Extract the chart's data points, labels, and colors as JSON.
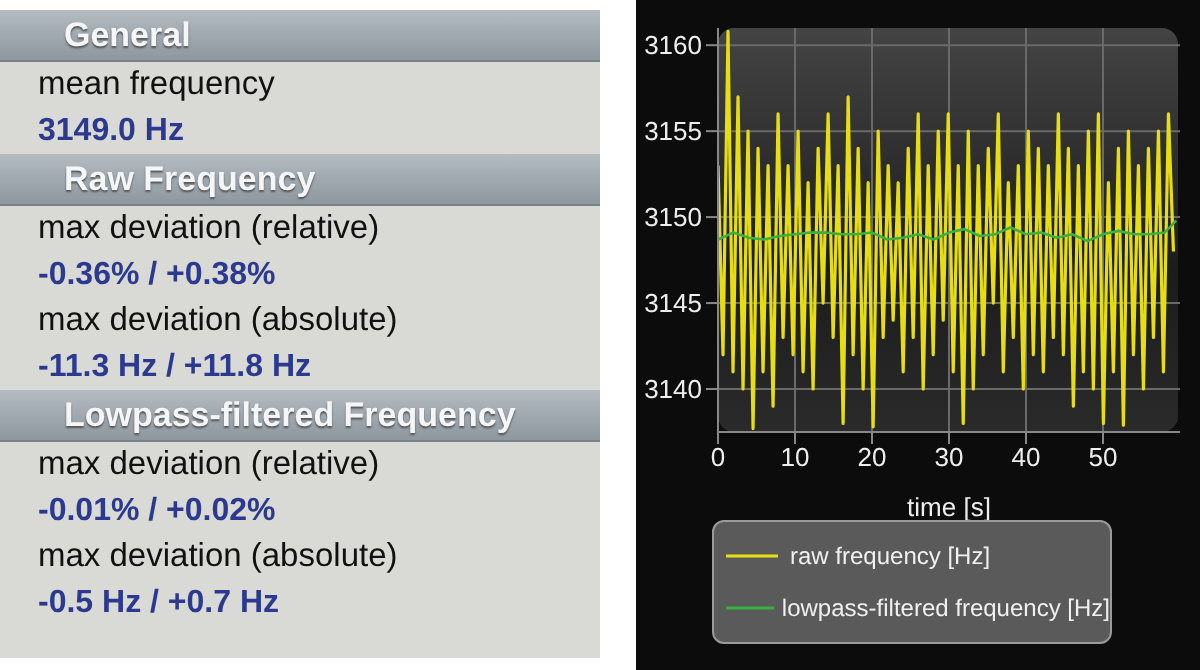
{
  "chart_data": [
    {
      "type": "other",
      "title": "General",
      "annotations": [
        "mean frequency",
        "3149.0 Hz"
      ]
    },
    {
      "type": "other",
      "title": "Raw Frequency",
      "annotations": [
        "max deviation (relative)",
        "-0.36% / +0.38%",
        "max deviation (absolute)",
        "-11.3 Hz / +11.8 Hz"
      ]
    },
    {
      "type": "other",
      "title": "Lowpass-filtered Frequency",
      "annotations": [
        "max deviation (relative)",
        "-0.01% / +0.02%",
        "max deviation (absolute)",
        "-0.5 Hz / +0.7 Hz"
      ]
    },
    {
      "type": "line",
      "xlabel": "time [s]",
      "xlim": [
        0,
        60
      ],
      "xticks": [
        0,
        10,
        20,
        30,
        40,
        50
      ],
      "ylim": [
        3137.5,
        3161
      ],
      "yticks": [
        3140,
        3145,
        3150,
        3155,
        3160
      ],
      "grid": true,
      "legend": "bottom",
      "marker": "none",
      "x": [
        0,
        0.65,
        1.3,
        1.95,
        2.6,
        3.25,
        3.9,
        4.55,
        5.2,
        5.85,
        6.5,
        7.15,
        7.8,
        8.45,
        9.1,
        9.75,
        10.4,
        11.05,
        11.7,
        12.35,
        13,
        13.65,
        14.3,
        14.95,
        15.6,
        16.25,
        16.9,
        17.55,
        18.2,
        18.85,
        19.5,
        20.15,
        20.8,
        21.45,
        22.1,
        22.75,
        23.4,
        24.05,
        24.7,
        25.35,
        26,
        26.65,
        27.3,
        27.95,
        28.6,
        29.25,
        29.9,
        30.55,
        31.2,
        31.85,
        32.5,
        33.15,
        33.8,
        34.45,
        35.1,
        35.75,
        36.4,
        37.05,
        37.7,
        38.35,
        39,
        39.65,
        40.3,
        40.95,
        41.6,
        42.25,
        42.9,
        43.55,
        44.2,
        44.85,
        45.5,
        46.15,
        46.8,
        47.45,
        48.1,
        48.75,
        49.4,
        50.05,
        50.7,
        51.35,
        52,
        52.65,
        53.3,
        53.95,
        54.6,
        55.25,
        55.9,
        56.55,
        57.2,
        57.85,
        58.5,
        59.15
      ],
      "series": [
        {
          "name": "raw frequency [Hz]",
          "color": "#e6de12",
          "values": [
            3153,
            3142,
            3160.8,
            3141,
            3157,
            3140,
            3155,
            3137.7,
            3154,
            3141,
            3153,
            3139,
            3156,
            3143,
            3153,
            3142,
            3155,
            3141,
            3152,
            3140,
            3154,
            3145,
            3156,
            3143,
            3153,
            3138,
            3157,
            3142,
            3154,
            3140,
            3152,
            3137.8,
            3155,
            3143,
            3153,
            3144,
            3152,
            3141,
            3154,
            3143,
            3156,
            3140,
            3153,
            3142,
            3155,
            3144,
            3156,
            3141,
            3153,
            3138,
            3155,
            3140,
            3153,
            3142,
            3154,
            3145,
            3156,
            3141,
            3152,
            3143,
            3153,
            3140,
            3155,
            3142,
            3154,
            3141,
            3153,
            3143,
            3156,
            3142,
            3154,
            3139,
            3153,
            3141,
            3155,
            3140,
            3156,
            3138,
            3152,
            3141,
            3154,
            3137.9,
            3155,
            3142,
            3153,
            3140,
            3154,
            3143,
            3155,
            3141,
            3156,
            3148
          ]
        },
        {
          "name": "lowpass-filtered frequency [Hz]",
          "color": "#3cb043",
          "x": [
            0,
            2,
            4,
            6,
            8,
            10,
            12,
            14,
            16,
            18,
            20,
            22,
            24,
            26,
            28,
            30,
            32,
            34,
            36,
            38,
            40,
            42,
            44,
            46,
            48,
            50,
            52,
            54,
            56,
            58,
            59.5
          ],
          "values": [
            3148.7,
            3149.1,
            3148.8,
            3148.7,
            3148.9,
            3149.0,
            3149.1,
            3149.1,
            3149.0,
            3149.0,
            3149.1,
            3148.7,
            3148.8,
            3149.0,
            3148.7,
            3149.1,
            3149.3,
            3148.9,
            3149.0,
            3149.4,
            3149.0,
            3149.1,
            3148.8,
            3149.0,
            3148.6,
            3149.0,
            3149.2,
            3149.0,
            3149.0,
            3149.1,
            3149.8
          ]
        }
      ]
    }
  ]
}
